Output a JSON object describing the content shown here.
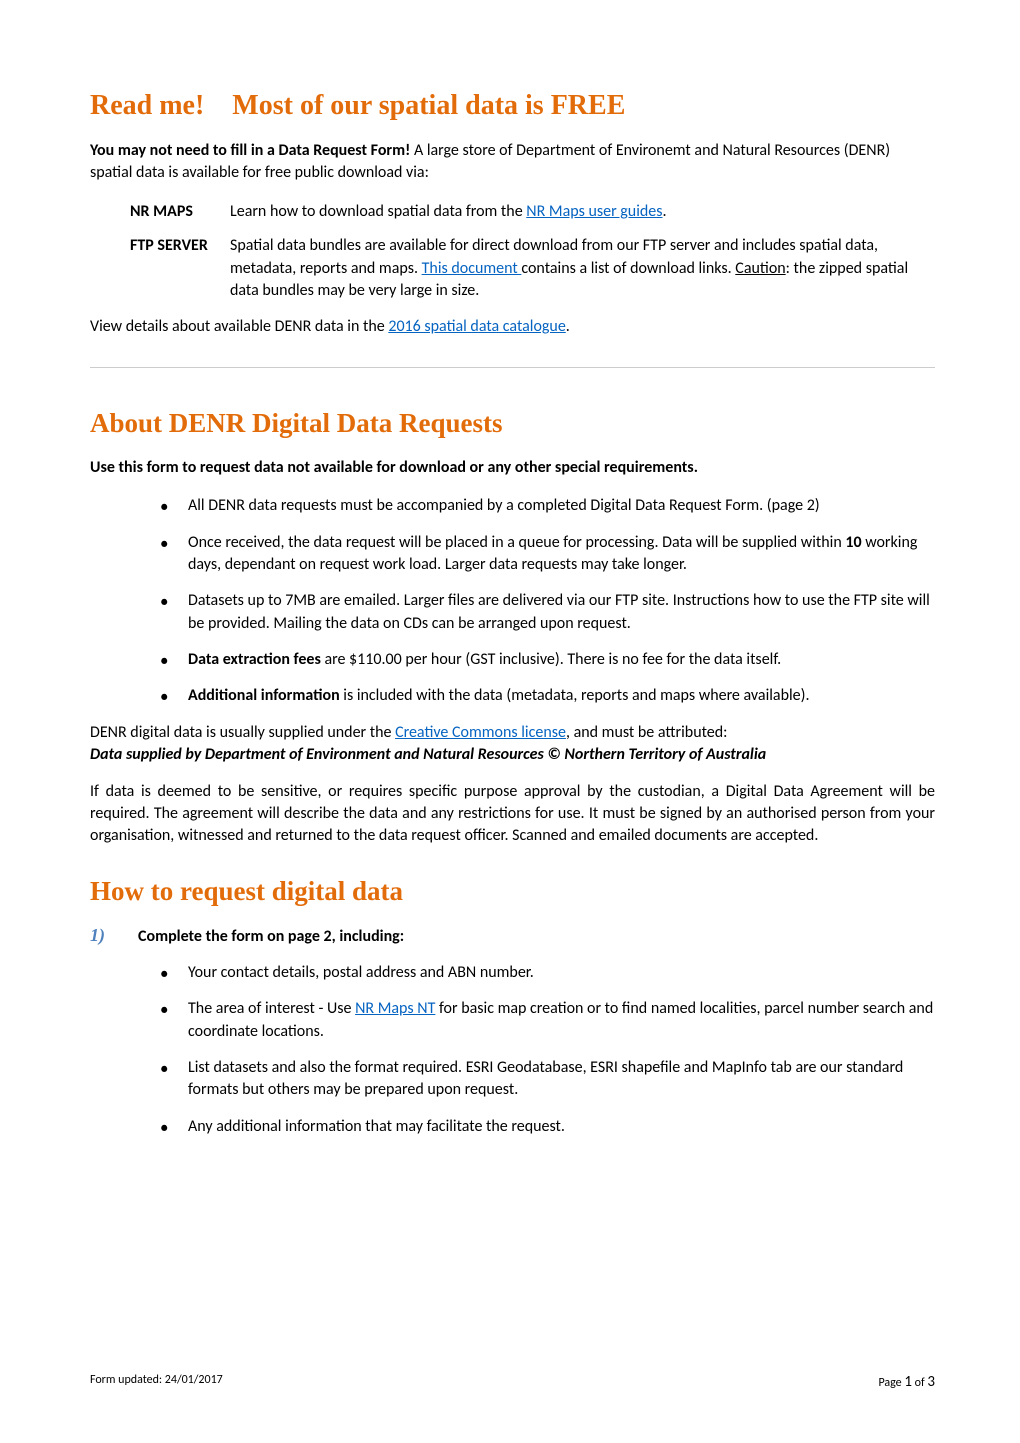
{
  "heading1": {
    "part1": "Read me!",
    "part2": "Most of our spatial data is FREE"
  },
  "intro": {
    "bold": "You may not need to fill in a Data Request Form!",
    "rest": "  A large store of Department of Environemt and Natural Resources (DENR) spatial data is available for free public download via:"
  },
  "defs": {
    "nrmaps": {
      "label": "NR MAPS",
      "text1": "Learn how to download spatial data from the ",
      "link": "NR Maps user guides",
      "text2": "."
    },
    "ftp": {
      "label": "FTP SERVER",
      "text1": "Spatial data bundles are available for direct download from our FTP server and includes spatial data, metadata, reports and maps.  ",
      "link": "This document ",
      "text2": " contains a list of download links.  ",
      "caution": "Caution",
      "text3": ":  the zipped spatial data bundles may be very large in size."
    }
  },
  "catalogue": {
    "text1": "View details about available DENR data in the ",
    "link": "2016 spatial data catalogue",
    "text2": "."
  },
  "heading2": "About DENR Digital Data Requests",
  "useform": "Use this form to request data not available for download or any other special requirements.",
  "bullets1": [
    "All DENR data requests must be accompanied by a completed Digital Data Request Form. (page 2)",
    "Once received, the data request will be placed in a queue for processing.  Data will be supplied within <b>10</b> working days, dependant on request work load.  Larger data requests may take longer.",
    "Datasets up to 7MB are emailed. Larger files are delivered via our FTP site. Instructions how to use the FTP site will be provided.  Mailing the data on CDs can be arranged upon request.",
    "<b>Data extraction fees</b> are $110.00 per hour (GST inclusive). There is no fee for the data itself.",
    "<b>Additional information</b> is included with the data (metadata, reports and maps where available)."
  ],
  "license": {
    "text1": "DENR digital data is usually supplied under the ",
    "link": "Creative Commons license",
    "text2": ", and must be attributed:"
  },
  "attribution": "Data supplied by Department of Environment and Natural Resources © Northern Territory of Australia",
  "sensitive": "If data is deemed to be sensitive, or requires specific purpose approval by the custodian, a Digital Data Agreement will be required.  The agreement will describe the data and any restrictions for use.  It must be signed by an authorised person from your organisation, witnessed and returned to the data request officer.  Scanned and emailed documents are accepted.",
  "heading3": "How to request digital data",
  "step1": {
    "num": "1)",
    "text": "Complete the form on page 2, including:"
  },
  "bullets2": {
    "b1": "Your contact details, postal address and ABN number.",
    "b2_1": "The area of interest - Use ",
    "b2_link": "NR Maps NT",
    "b2_2": " for basic map creation or to find named localities, parcel number search and coordinate locations.",
    "b3": "List datasets and also the format required.  ESRI Geodatabase, ESRI shapefile and MapInfo tab are our standard formats but others may be prepared upon request.",
    "b4": "Any additional information that may facilitate the request."
  },
  "footer": {
    "left": "Form updated: 24/01/2017",
    "right_prefix": "Page ",
    "right_cur": "1",
    "right_of": " of ",
    "right_total": "3"
  },
  "colors": {
    "heading_blue": "#1f497d",
    "orange": "#e36c0a",
    "link": "#0563c1",
    "step_blue": "#4f81bd",
    "text": "#000000",
    "bg": "#ffffff",
    "divider": "#cccccc"
  }
}
